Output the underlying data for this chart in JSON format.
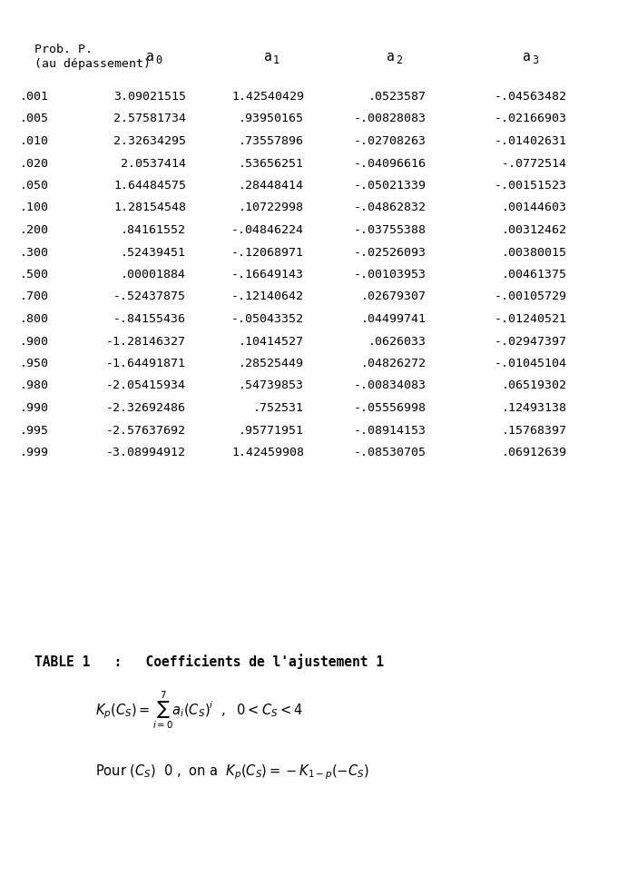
{
  "header1": "Prob. P.",
  "header2": "(au dépassement)",
  "col_headers": [
    "a₀",
    "a₁",
    "a₂",
    "a₃"
  ],
  "col_headers_raw": [
    "a_0",
    "a_1",
    "a_2",
    "a_3"
  ],
  "rows": [
    [
      ".001",
      "3.09021515",
      "1.42540429",
      ".0523587",
      "-.04563482"
    ],
    [
      ".005",
      "2.57581734",
      ".93950165",
      "-.00828083",
      "-.02166903"
    ],
    [
      ".010",
      "2.32634295",
      ".73557896",
      "-.02708263",
      "-.01402631"
    ],
    [
      ".020",
      "2.0537414",
      ".53656251",
      "-.04096616",
      "-.0772514"
    ],
    [
      ".050",
      "1.64484575",
      ".28448414",
      "-.05021339",
      "-.00151523"
    ],
    [
      ".100",
      "1.28154548",
      ".10722998",
      "-.04862832",
      ".00144603"
    ],
    [
      ".200",
      ".84161552",
      "-.04846224",
      "-.03755388",
      ".00312462"
    ],
    [
      ".300",
      ".52439451",
      "-.12068971",
      "-.02526093",
      ".00380015"
    ],
    [
      ".500",
      ".00001884",
      "-.16649143",
      "-.00103953",
      ".00461375"
    ],
    [
      ".700",
      "-.52437875",
      "-.12140642",
      ".02679307",
      "-.00105729"
    ],
    [
      ".800",
      "-.84155436",
      "-.05043352",
      ".04499741",
      "-.01240521"
    ],
    [
      ".900",
      "-1.28146327",
      ".10414527",
      ".0626033",
      "-.02947397"
    ],
    [
      ".950",
      "-1.64491871",
      ".28525449",
      ".04826272",
      "-.01045104"
    ],
    [
      ".980",
      "-2.05415934",
      ".54739853",
      "-.00834083",
      ".06519302"
    ],
    [
      ".990",
      "-2.32692486",
      ".752531",
      "-.05556998",
      ".12493138"
    ],
    [
      ".995",
      "-2.57637692",
      ".95771951",
      "-.08914153",
      ".15768397"
    ],
    [
      ".999",
      "-3.08994912",
      "1.42459908",
      "-.08530705",
      ".06912639"
    ]
  ],
  "caption": "TABLE 1   :   Coefficients de l'ajustement 1",
  "formula_line1": "K_p(C_S) = \\sum_{i=0}^{7} a_i(C_S)^i ,   0 < C_S < 4",
  "formula_line2": "Pour (C_S)   0 , on a   K_p(C_S) = -K_{1-p}(-C_S)",
  "bg_color": "#ffffff",
  "text_color": "#000000",
  "font_size": 9.5,
  "header_font_size": 9.5
}
